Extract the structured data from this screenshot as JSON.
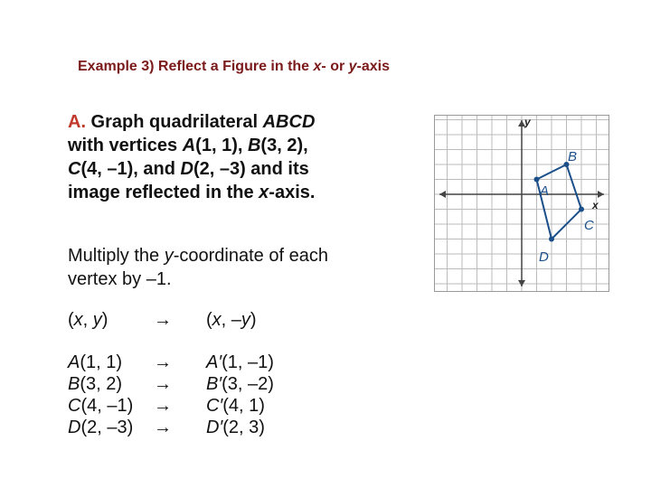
{
  "title": [
    "Example 3) Reflect a Figure in the ",
    "x",
    "- or ",
    "y",
    "-axis"
  ],
  "problem": {
    "label": "A.",
    "lines": [
      [
        " Graph quadrilateral ",
        "ABCD"
      ],
      [
        "with vertices ",
        "A",
        "(1, 1), ",
        "B",
        "(3, 2),"
      ],
      [
        "C",
        "(4, –1), and ",
        "D",
        "(2, –3) and its"
      ],
      [
        "image reflected in the ",
        "x",
        "-axis."
      ]
    ]
  },
  "instruction": [
    [
      "Multiply the ",
      "y",
      "-coordinate of each"
    ],
    [
      "vertex by –1."
    ]
  ],
  "table": {
    "header": {
      "left": [
        "(",
        "x",
        ", ",
        "y",
        ")"
      ],
      "arrow": "→",
      "right": [
        "(",
        "x",
        ", –",
        "y",
        ")"
      ]
    },
    "rows": [
      {
        "left": [
          "A",
          "(1, 1)"
        ],
        "arrow": "→",
        "right": [
          "A′",
          "(1, –1)"
        ]
      },
      {
        "left": [
          "B",
          "(3, 2)"
        ],
        "arrow": "→",
        "right": [
          "B′",
          "(3, –2)"
        ]
      },
      {
        "left": [
          "C",
          "(4, –1)"
        ],
        "arrow": "→",
        "right": [
          "C′",
          "(4, 1)"
        ]
      },
      {
        "left": [
          "D",
          "(2, –3)"
        ],
        "arrow": "→",
        "right": [
          "D′",
          "(2, 3)"
        ]
      }
    ]
  },
  "graph": {
    "y_label": "y",
    "x_label": "x",
    "points": [
      "A",
      "B",
      "C",
      "D"
    ]
  }
}
